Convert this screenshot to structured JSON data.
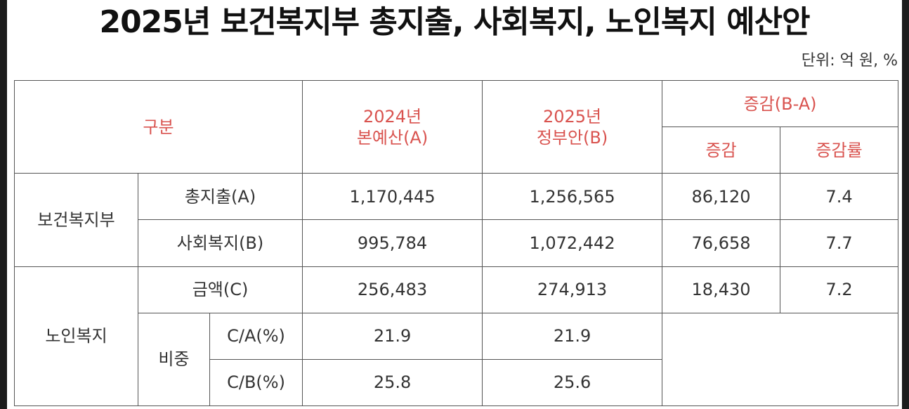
{
  "title": "2025년 보건복지부 총지출, 사회복지, 노인복지 예산안",
  "unit": "단위: 억 원, %",
  "colors": {
    "header_text": "#d9534f",
    "body_text": "#333333",
    "border": "#555555"
  },
  "header": {
    "category": "구분",
    "col_2024_line1": "2024년",
    "col_2024_line2": "본예산(A)",
    "col_2025_line1": "2025년",
    "col_2025_line2": "정부안(B)",
    "change_group": "증감(B-A)",
    "change": "증감",
    "change_rate": "증감률"
  },
  "groups": {
    "mohw": "보건복지부",
    "elderly": "노인복지",
    "share": "비중"
  },
  "rows": {
    "total": {
      "label": "총지출(A)",
      "v2024": "1,170,445",
      "v2025": "1,256,565",
      "change": "86,120",
      "rate": "7.4"
    },
    "social": {
      "label": "사회복지(B)",
      "v2024": "995,784",
      "v2025": "1,072,442",
      "change": "76,658",
      "rate": "7.7"
    },
    "amount": {
      "label": "금액(C)",
      "v2024": "256,483",
      "v2025": "274,913",
      "change": "18,430",
      "rate": "7.2"
    },
    "ca": {
      "label": "C/A(%)",
      "v2024": "21.9",
      "v2025": "21.9"
    },
    "cb": {
      "label": "C/B(%)",
      "v2024": "25.8",
      "v2025": "25.6"
    }
  }
}
